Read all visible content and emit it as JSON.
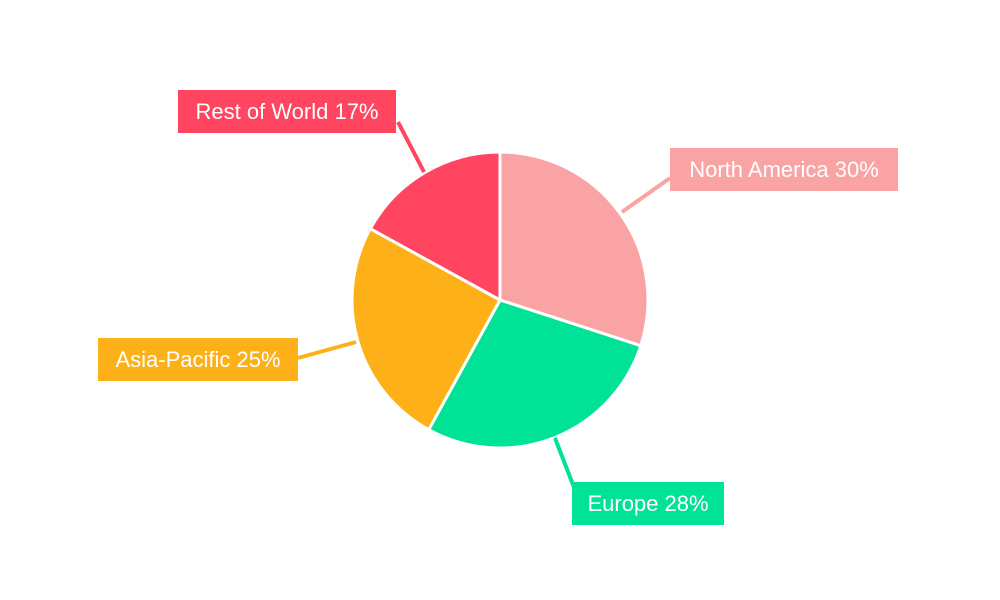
{
  "chart_data": {
    "type": "pie",
    "title": "",
    "legend": "none",
    "slices": [
      {
        "label": "North America",
        "value": 30,
        "display": "North America 30%",
        "color": "#F9A3A4"
      },
      {
        "label": "Europe",
        "value": 28,
        "display": "Europe 28%",
        "color": "#00E396"
      },
      {
        "label": "Asia-Pacific",
        "value": 25,
        "display": "Asia-Pacific 25%",
        "color": "#FEB019"
      },
      {
        "label": "Rest of World",
        "value": 17,
        "display": "Rest of World 17%",
        "color": "#FF4560"
      }
    ]
  }
}
